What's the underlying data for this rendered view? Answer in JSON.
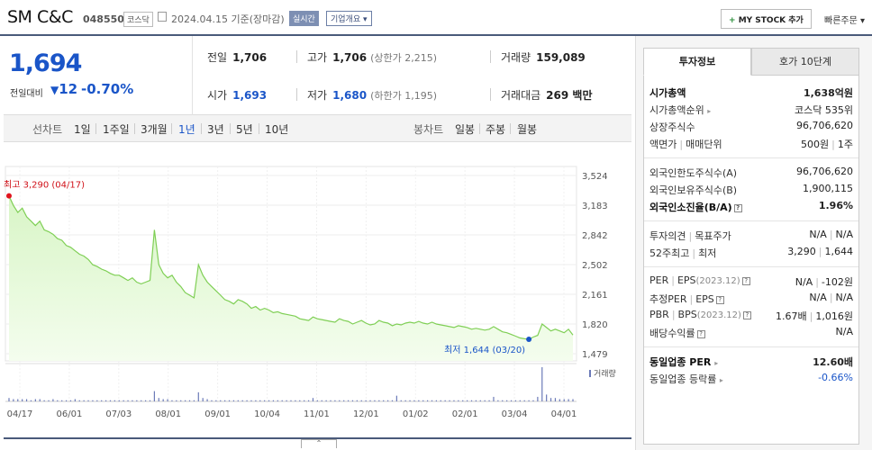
{
  "header": {
    "name": "SM C&C",
    "code": "048550",
    "market": "코스닥",
    "date_text": "2024.04.15 기준(장마감)",
    "realtime_label": "실시간",
    "company_overview_label": "기업개요",
    "mystock_label": "MY STOCK 추가",
    "quick_order_label": "빠른주문"
  },
  "summary": {
    "price": "1,694",
    "change_label": "전일대비",
    "change": "12",
    "change_pct": "-0.70%",
    "prev_close_label": "전일",
    "prev_close": "1,706",
    "high_label": "고가",
    "high": "1,706",
    "upper_limit": "(상한가 2,215)",
    "volume_label": "거래량",
    "volume": "159,089",
    "open_label": "시가",
    "open": "1,693",
    "low_label": "저가",
    "low": "1,680",
    "lower_limit": "(하한가 1,195)",
    "trade_value_label": "거래대금",
    "trade_value": "269 백만"
  },
  "period_bar": {
    "line_chart_label": "선차트",
    "periods": [
      "1일",
      "1주일",
      "3개월",
      "1년",
      "3년",
      "5년",
      "10년"
    ],
    "active_period": "1년",
    "candle_chart_label": "봉차트",
    "candles": [
      "일봉",
      "주봉",
      "월봉"
    ]
  },
  "chart_data": {
    "type": "area",
    "y_ticks": [
      "3,524",
      "3,183",
      "2,842",
      "2,502",
      "2,161",
      "1,820",
      "1,479"
    ],
    "ylim": [
      1479,
      3524
    ],
    "x_ticks": [
      "04/17",
      "06/01",
      "07/03",
      "08/01",
      "09/01",
      "10/04",
      "11/01",
      "12/01",
      "01/02",
      "02/01",
      "03/04",
      "04/01"
    ],
    "high_label": "최고 3,290 (04/17)",
    "low_label": "최저 1,644 (03/20)",
    "high_value": 3290,
    "low_value": 1644,
    "volume_legend": "거래량",
    "series": [
      {
        "values": [
          3290,
          3180,
          3100,
          3150,
          3050,
          3000,
          2950,
          3000,
          2900,
          2880,
          2850,
          2800,
          2780,
          2720,
          2700,
          2660,
          2620,
          2600,
          2560,
          2500,
          2480,
          2450,
          2430,
          2400,
          2380,
          2380,
          2350,
          2320,
          2350,
          2300,
          2280,
          2300,
          2320,
          2900,
          2500,
          2400,
          2350,
          2380,
          2300,
          2250,
          2180,
          2150,
          2120,
          2500,
          2380,
          2300,
          2250,
          2200,
          2150,
          2100,
          2080,
          2050,
          2100,
          2080,
          2050,
          2000,
          2020,
          1980,
          2000,
          1980,
          1950,
          1960,
          1940,
          1930,
          1920,
          1910,
          1880,
          1870,
          1860,
          1900,
          1880,
          1870,
          1860,
          1850,
          1840,
          1880,
          1860,
          1850,
          1820,
          1840,
          1860,
          1830,
          1810,
          1820,
          1860,
          1840,
          1830,
          1800,
          1820,
          1810,
          1830,
          1840,
          1830,
          1850,
          1830,
          1820,
          1840,
          1820,
          1810,
          1800,
          1790,
          1780,
          1800,
          1790,
          1780,
          1760,
          1770,
          1760,
          1750,
          1760,
          1790,
          1760,
          1730,
          1720,
          1700,
          1680,
          1660,
          1650,
          1644,
          1670,
          1690,
          1820,
          1780,
          1740,
          1760,
          1740,
          1720,
          1760,
          1694
        ]
      }
    ],
    "volume_values": [
      3,
      2,
      2,
      2,
      2,
      1,
      2,
      2,
      1,
      1,
      2,
      1,
      1,
      1,
      1,
      2,
      1,
      1,
      1,
      1,
      1,
      1,
      1,
      1,
      1,
      1,
      1,
      1,
      1,
      1,
      1,
      1,
      1,
      9,
      3,
      2,
      2,
      1,
      1,
      1,
      1,
      1,
      1,
      8,
      3,
      2,
      1,
      1,
      1,
      1,
      1,
      1,
      1,
      1,
      1,
      1,
      1,
      1,
      1,
      1,
      1,
      1,
      1,
      1,
      1,
      1,
      1,
      1,
      1,
      3,
      1,
      1,
      1,
      1,
      1,
      1,
      1,
      1,
      1,
      1,
      1,
      1,
      1,
      1,
      1,
      1,
      1,
      1,
      5,
      1,
      1,
      1,
      1,
      1,
      1,
      1,
      1,
      1,
      1,
      1,
      1,
      1,
      1,
      1,
      1,
      1,
      1,
      1,
      1,
      1,
      4,
      1,
      1,
      1,
      1,
      1,
      1,
      1,
      1,
      1,
      4,
      30,
      6,
      3,
      3,
      2,
      2,
      2,
      2
    ]
  },
  "right_panel": {
    "tab_active": "투자정보",
    "tab_other": "호가 10단계",
    "market_cap_label": "시가총액",
    "market_cap": "1,638억원",
    "market_cap_rank_label": "시가총액순위",
    "market_cap_rank": "코스닥 535위",
    "shares_label": "상장주식수",
    "shares": "96,706,620",
    "par_label": "액면가",
    "unit_label": "매매단위",
    "par": "500원",
    "unit": "1주",
    "foreign_limit_label": "외국인한도주식수(A)",
    "foreign_limit": "96,706,620",
    "foreign_hold_label": "외국인보유주식수(B)",
    "foreign_hold": "1,900,115",
    "foreign_ratio_label": "외국인소진율(B/A)",
    "foreign_ratio": "1.96%",
    "opinion_label": "투자의견",
    "target_label": "목표주가",
    "opinion": "N/A",
    "target": "N/A",
    "wk52_label": "52주최고",
    "wk52_low_label": "최저",
    "wk52_high": "3,290",
    "wk52_low": "1,644",
    "per_label": "PER",
    "eps_label": "EPS",
    "eps_year": "(2023.12)",
    "per": "N/A",
    "eps": "-102원",
    "est_per_label": "추정PER",
    "est_eps_label": "EPS",
    "est_per": "N/A",
    "est_eps": "N/A",
    "pbr_label": "PBR",
    "bps_label": "BPS",
    "bps_year": "(2023.12)",
    "pbr": "1.67배",
    "bps": "1,016원",
    "div_label": "배당수익률",
    "div": "N/A",
    "ind_per_label": "동일업종 PER",
    "ind_per": "12.60배",
    "ind_rate_label": "동일업종 등락률",
    "ind_rate": "-0.66%"
  }
}
